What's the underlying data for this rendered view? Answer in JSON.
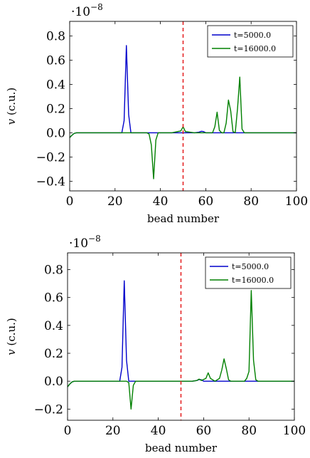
{
  "chart_data": [
    {
      "type": "line",
      "xlabel": "bead number",
      "ylabel": "v (c.u.)",
      "y_scale_label": "·10",
      "y_scale_exponent": "−8",
      "xlim": [
        0,
        100
      ],
      "ylim": [
        -0.48,
        0.92
      ],
      "xticks": [
        0,
        20,
        40,
        60,
        80,
        100
      ],
      "xtick_labels": [
        "0",
        "20",
        "40",
        "60",
        "80",
        "100"
      ],
      "yticks": [
        -0.4,
        -0.2,
        0.0,
        0.2,
        0.4,
        0.6,
        0.8
      ],
      "ytick_labels": [
        "−0.4",
        "−0.2",
        "0.0",
        "0.2",
        "0.4",
        "0.6",
        "0.8"
      ],
      "vline": {
        "x": 50,
        "color": "#e41a1c",
        "style": "dashed"
      },
      "legend_position": "top-right",
      "series": [
        {
          "name": "t=5000.0",
          "color": "#0000cc",
          "x": [
            0,
            1,
            2,
            3,
            5,
            10,
            20,
            23,
            24,
            25,
            26,
            27,
            28,
            30,
            40,
            50,
            55,
            57,
            58,
            59,
            60,
            62,
            65,
            70,
            80,
            90,
            100
          ],
          "y": [
            -0.04,
            -0.02,
            -0.005,
            0,
            0,
            0,
            0,
            0,
            0.1,
            0.72,
            0.15,
            0,
            0,
            0,
            0,
            0,
            0,
            0.005,
            0.012,
            0.01,
            0,
            0,
            0,
            0,
            0,
            0,
            0
          ]
        },
        {
          "name": "t=16000.0",
          "color": "#008000",
          "x": [
            0,
            1,
            2,
            3,
            5,
            10,
            20,
            30,
            34,
            35,
            36,
            37,
            38,
            39,
            40,
            45,
            49,
            50,
            51,
            55,
            60,
            63,
            64,
            65,
            66,
            67,
            68,
            69,
            70,
            71,
            72,
            73,
            74,
            75,
            76,
            77,
            80,
            90,
            100
          ],
          "y": [
            -0.04,
            -0.02,
            -0.005,
            0,
            0,
            0,
            0,
            0,
            0,
            -0.01,
            -0.1,
            -0.38,
            -0.06,
            0,
            0,
            0,
            0.015,
            0.05,
            0.01,
            0,
            0,
            0,
            0.05,
            0.17,
            0.02,
            0,
            0,
            0.08,
            0.27,
            0.18,
            0.01,
            0,
            0.2,
            0.46,
            0.03,
            0,
            0,
            0,
            0
          ]
        }
      ]
    },
    {
      "type": "line",
      "xlabel": "bead number",
      "ylabel": "v (c.u.)",
      "y_scale_label": "·10",
      "y_scale_exponent": "−8",
      "xlim": [
        0,
        100
      ],
      "ylim": [
        -0.28,
        0.92
      ],
      "xticks": [
        0,
        20,
        40,
        60,
        80,
        100
      ],
      "xtick_labels": [
        "0",
        "20",
        "40",
        "60",
        "80",
        "100"
      ],
      "yticks": [
        -0.2,
        0.0,
        0.2,
        0.4,
        0.6,
        0.8
      ],
      "ytick_labels": [
        "−0.2",
        "0.0",
        "0.2",
        "0.4",
        "0.6",
        "0.8"
      ],
      "vline": {
        "x": 50,
        "color": "#e41a1c",
        "style": "dashed"
      },
      "legend_position": "top-right",
      "series": [
        {
          "name": "t=5000.0",
          "color": "#0000cc",
          "x": [
            0,
            1,
            2,
            3,
            5,
            10,
            20,
            23,
            24,
            25,
            26,
            27,
            28,
            30,
            40,
            50,
            55,
            57,
            58,
            59,
            60,
            62,
            65,
            70,
            80,
            90,
            100
          ],
          "y": [
            -0.04,
            -0.02,
            -0.005,
            0,
            0,
            0,
            0,
            0,
            0.1,
            0.72,
            0.15,
            0,
            0,
            0,
            0,
            0,
            0,
            0.005,
            0.012,
            0.01,
            0,
            0,
            0,
            0,
            0,
            0,
            0
          ]
        },
        {
          "name": "t=16000.0",
          "color": "#008000",
          "x": [
            0,
            1,
            2,
            3,
            5,
            10,
            20,
            25,
            26,
            27,
            28,
            29,
            30,
            35,
            50,
            55,
            57,
            58,
            59,
            61,
            62,
            63,
            65,
            67,
            68,
            69,
            70,
            71,
            72,
            75,
            78,
            79,
            80,
            81,
            82,
            83,
            84,
            90,
            100
          ],
          "y": [
            -0.04,
            -0.02,
            -0.005,
            0,
            0,
            0,
            0,
            0,
            0,
            -0.01,
            -0.2,
            -0.03,
            0,
            0,
            0,
            0,
            0.005,
            0.015,
            0.005,
            0.02,
            0.06,
            0.02,
            0,
            0.02,
            0.08,
            0.16,
            0.09,
            0.01,
            0,
            0,
            0,
            0.02,
            0.07,
            0.65,
            0.15,
            0.01,
            0,
            0,
            0
          ]
        }
      ]
    }
  ]
}
